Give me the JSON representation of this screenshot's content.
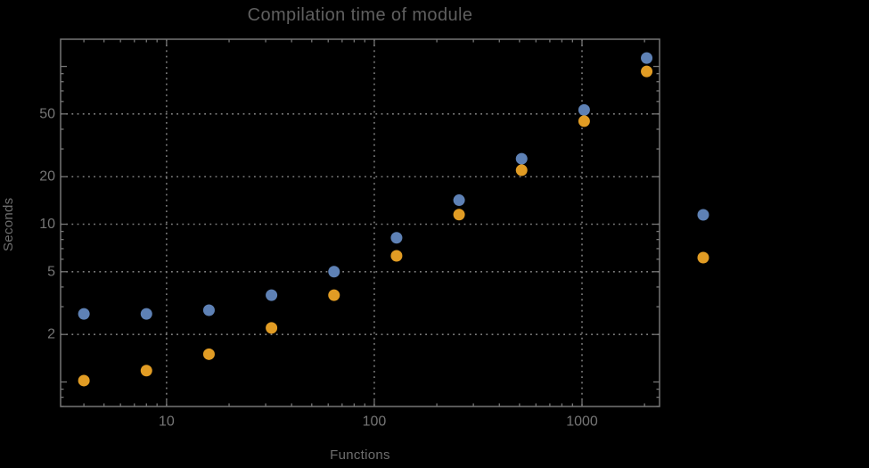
{
  "chart_data": {
    "type": "scatter",
    "title": "Compilation time of module",
    "xlabel": "Functions",
    "ylabel": "Seconds",
    "x_scale": "log",
    "y_scale": "log",
    "grid": "dotted",
    "x": [
      4,
      8,
      16,
      32,
      64,
      128,
      256,
      512,
      1024,
      2048
    ],
    "series": [
      {
        "name": "series-1-blue",
        "color": "#5E81B5",
        "values": [
          2.7,
          2.7,
          2.85,
          3.55,
          5.0,
          8.2,
          14.2,
          26,
          53,
          113
        ]
      },
      {
        "name": "series-2-orange",
        "color": "#E19C24",
        "values": [
          1.02,
          1.18,
          1.5,
          2.2,
          3.55,
          6.3,
          11.5,
          22,
          45,
          93
        ]
      }
    ],
    "x_tick_labels": [
      "10",
      "100",
      "1000"
    ],
    "x_tick_values": [
      10,
      100,
      1000
    ],
    "y_tick_labels": [
      "2",
      "5",
      "10",
      "20",
      "50"
    ],
    "y_tick_values": [
      2,
      5,
      10,
      20,
      50
    ],
    "x_gridline_values": [
      10,
      100,
      1000
    ],
    "y_gridline_values": [
      2,
      5,
      10,
      20,
      50
    ],
    "x_range": [
      3.09,
      2362
    ],
    "y_range": [
      0.699,
      148.8
    ],
    "legend": {
      "position": "right-of-frame",
      "markers": [
        {
          "series": "series-1-blue",
          "color": "#5E81B5"
        },
        {
          "series": "series-2-orange",
          "color": "#E19C24"
        }
      ]
    }
  },
  "style": {
    "background": "#000000",
    "frame_color": "#757575",
    "grid_color": "#7e7e7e",
    "tick_label_color": "#757575",
    "title_color": "#5f5f5f",
    "axis_label_color": "#6e6e6e"
  }
}
